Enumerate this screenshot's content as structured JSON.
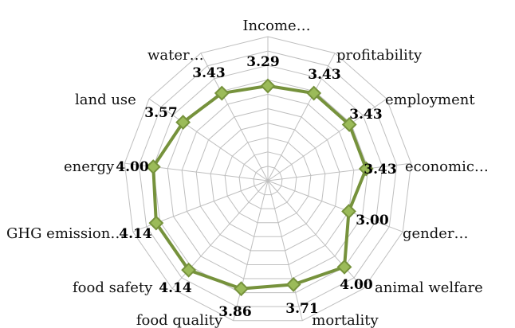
{
  "chart_data": {
    "type": "radar",
    "categories": [
      "Income…",
      "profitability",
      "employment",
      "economic…",
      "gender…",
      "animal welfare",
      "mortality",
      "food quality",
      "food safety",
      "GHG emission…",
      "energy",
      "land use",
      "water…"
    ],
    "series": [
      {
        "values": [
          3.29,
          3.43,
          3.43,
          3.43,
          3.0,
          4.0,
          3.71,
          3.86,
          4.14,
          4.14,
          4.0,
          3.57,
          3.43
        ],
        "labels": [
          "3.29",
          "3.43",
          "3.43",
          "3.43",
          "3.00",
          "4.00",
          "3.71",
          "3.86",
          "4.14",
          "4.14",
          "4.00",
          "3.57",
          "3.43"
        ],
        "color": "#76923C",
        "marker_color": "#9BBB59"
      }
    ],
    "rlim": [
      0,
      5
    ],
    "grid": true,
    "grid_color": "#BFBFBF",
    "legend": "none"
  }
}
